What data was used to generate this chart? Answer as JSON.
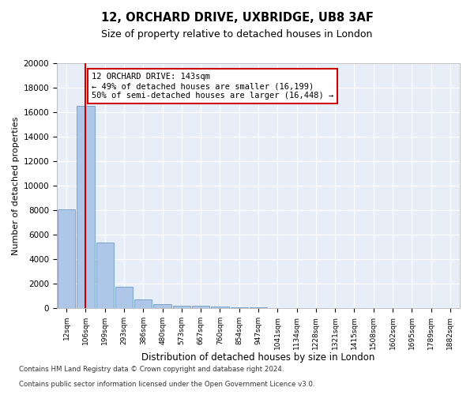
{
  "title1": "12, ORCHARD DRIVE, UXBRIDGE, UB8 3AF",
  "title2": "Size of property relative to detached houses in London",
  "xlabel": "Distribution of detached houses by size in London",
  "ylabel": "Number of detached properties",
  "footer1": "Contains HM Land Registry data © Crown copyright and database right 2024.",
  "footer2": "Contains public sector information licensed under the Open Government Licence v3.0.",
  "annotation_title": "12 ORCHARD DRIVE: 143sqm",
  "annotation_line2": "← 49% of detached houses are smaller (16,199)",
  "annotation_line3": "50% of semi-detached houses are larger (16,448) →",
  "bar_color": "#aec6e8",
  "bar_edge_color": "#5a8fc0",
  "redline_color": "#cc0000",
  "background_color": "#e8eef8",
  "bin_labels": [
    "12sqm",
    "106sqm",
    "199sqm",
    "293sqm",
    "386sqm",
    "480sqm",
    "573sqm",
    "667sqm",
    "760sqm",
    "854sqm",
    "947sqm",
    "1041sqm",
    "1134sqm",
    "1228sqm",
    "1321sqm",
    "1415sqm",
    "1508sqm",
    "1602sqm",
    "1695sqm",
    "1789sqm",
    "1882sqm"
  ],
  "bar_values": [
    8050,
    16500,
    5350,
    1750,
    700,
    350,
    210,
    175,
    150,
    90,
    50,
    30,
    20,
    15,
    10,
    8,
    6,
    5,
    4,
    3,
    2
  ],
  "redline_x": 1.0,
  "ylim": [
    0,
    20000
  ],
  "yticks": [
    0,
    2000,
    4000,
    6000,
    8000,
    10000,
    12000,
    14000,
    16000,
    18000,
    20000
  ]
}
